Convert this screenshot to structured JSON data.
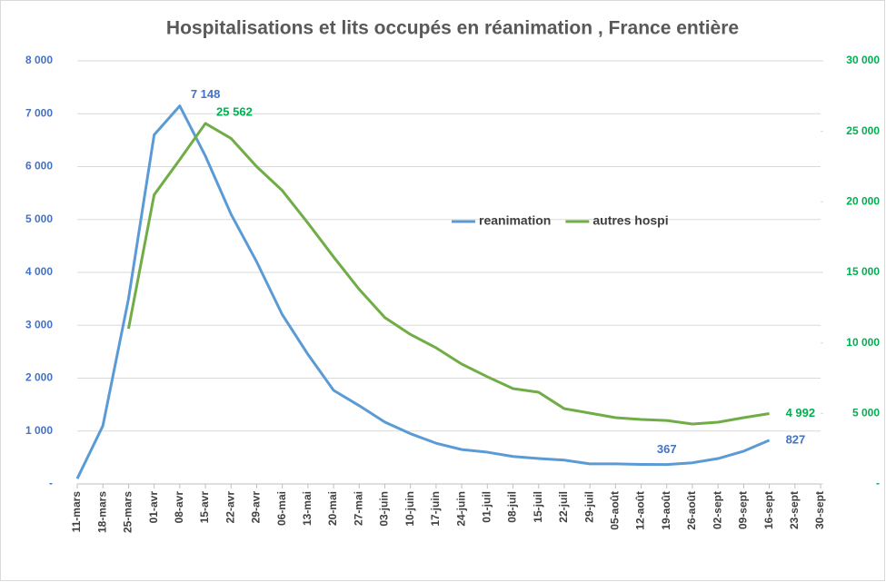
{
  "chart_data": {
    "type": "line",
    "title": "Hospitalisations et lits occupés en réanimation , France entière",
    "categories": [
      "11-mars",
      "18-mars",
      "25-mars",
      "01-avr",
      "08-avr",
      "15-avr",
      "22-avr",
      "29-avr",
      "06-mai",
      "13-mai",
      "20-mai",
      "27-mai",
      "03-juin",
      "10-juin",
      "17-juin",
      "24-juin",
      "01-juil",
      "08-juil",
      "15-juil",
      "22-juil",
      "29-juil",
      "05-août",
      "12-août",
      "19-août",
      "26-août",
      "02-sept",
      "09-sept",
      "16-sept",
      "23-sept",
      "30-sept"
    ],
    "series": [
      {
        "name": "reanimation",
        "color": "#5b9bd5",
        "label_color": "#4472c4",
        "axis": "y",
        "values": [
          100,
          1100,
          3500,
          6600,
          7148,
          6200,
          5100,
          4200,
          3200,
          2450,
          1770,
          1480,
          1170,
          950,
          770,
          650,
          600,
          520,
          480,
          450,
          380,
          380,
          370,
          367,
          400,
          480,
          620,
          827,
          null,
          null
        ],
        "value_labels": [
          null,
          null,
          null,
          null,
          "7 148",
          null,
          null,
          null,
          null,
          null,
          null,
          null,
          null,
          null,
          null,
          null,
          null,
          null,
          null,
          null,
          null,
          null,
          null,
          "367",
          null,
          null,
          null,
          "827",
          null,
          null
        ]
      },
      {
        "name": "autres hospi",
        "color": "#70ad47",
        "label_color": "#00b050",
        "axis": "y2",
        "values": [
          null,
          null,
          11000,
          20500,
          23000,
          25562,
          24500,
          22500,
          20800,
          18500,
          16100,
          13800,
          11800,
          10600,
          9650,
          8500,
          7600,
          6760,
          6500,
          5340,
          5020,
          4700,
          4570,
          4500,
          4250,
          4380,
          4700,
          4992,
          null,
          null
        ],
        "value_labels": [
          null,
          null,
          null,
          null,
          null,
          "25 562",
          null,
          null,
          null,
          null,
          null,
          null,
          null,
          null,
          null,
          null,
          null,
          null,
          null,
          null,
          null,
          null,
          null,
          null,
          null,
          null,
          null,
          "4 992",
          null,
          null
        ]
      }
    ],
    "ylim": [
      0,
      8000
    ],
    "yticks": [
      {
        "value": 0,
        "label": "-"
      },
      {
        "value": 1000,
        "label": "1 000"
      },
      {
        "value": 2000,
        "label": "2 000"
      },
      {
        "value": 3000,
        "label": "3 000"
      },
      {
        "value": 4000,
        "label": "4 000"
      },
      {
        "value": 5000,
        "label": "5 000"
      },
      {
        "value": 6000,
        "label": "6 000"
      },
      {
        "value": 7000,
        "label": "7 000"
      },
      {
        "value": 8000,
        "label": "8 000"
      }
    ],
    "y2lim": [
      0,
      30000
    ],
    "y2ticks": [
      {
        "value": 0,
        "label": "-"
      },
      {
        "value": 5000,
        "label": "5 000"
      },
      {
        "value": 10000,
        "label": "10 000"
      },
      {
        "value": 15000,
        "label": "15 000"
      },
      {
        "value": 20000,
        "label": "20 000"
      },
      {
        "value": 25000,
        "label": "25 000"
      },
      {
        "value": 30000,
        "label": "30 000"
      }
    ],
    "grid": true,
    "legend": "center"
  }
}
